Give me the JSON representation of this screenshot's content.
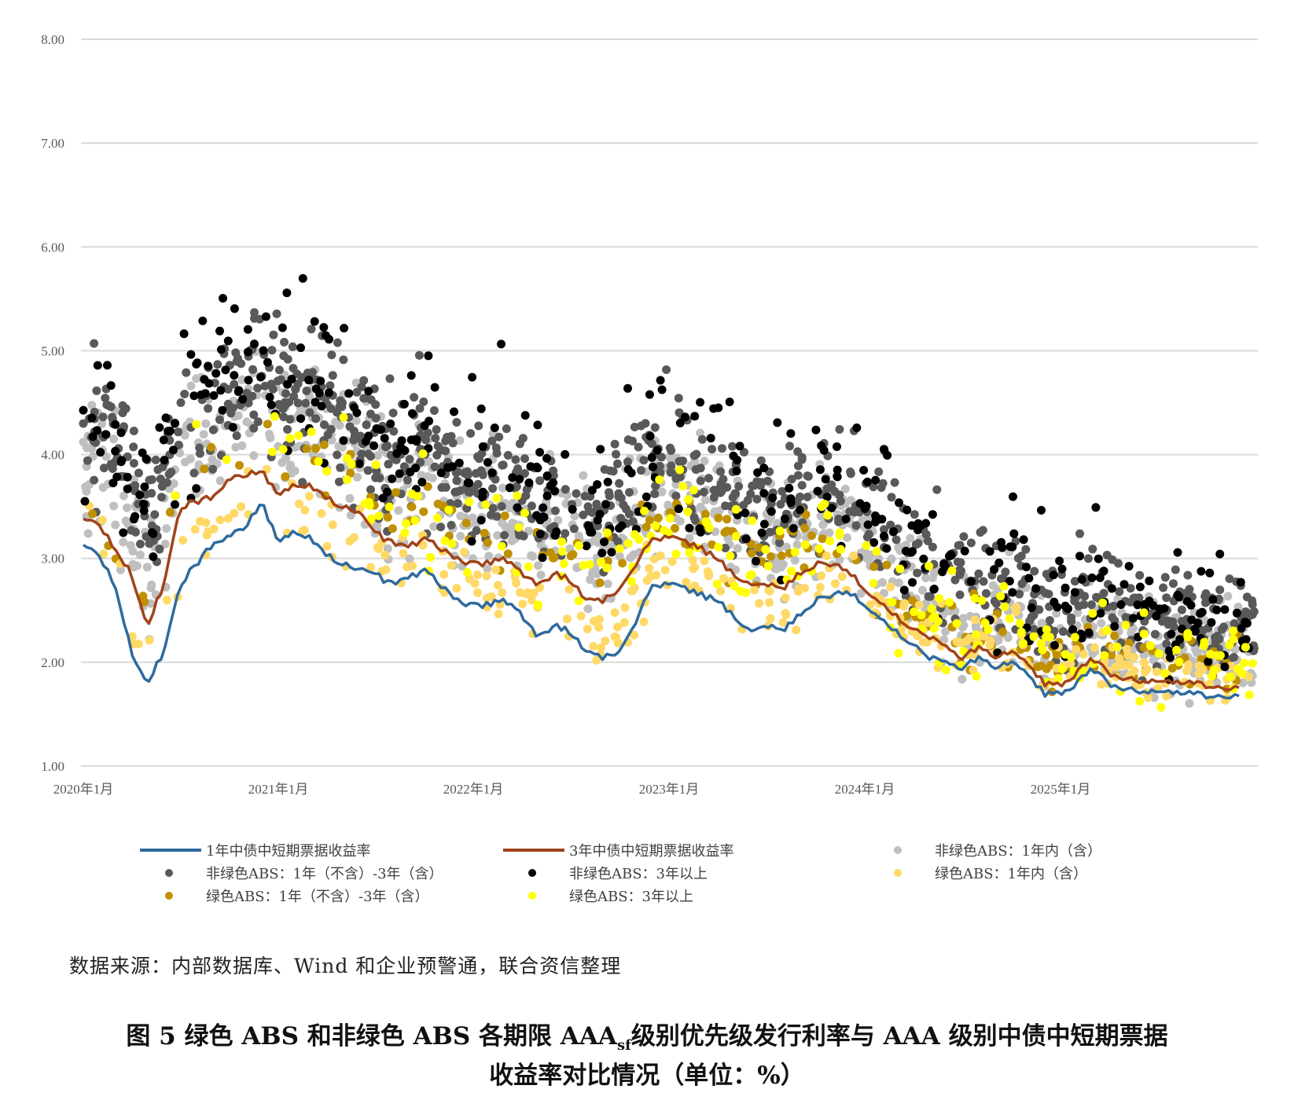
{
  "chart_data": {
    "type": "scatter",
    "ylim": [
      1.0,
      8.0
    ],
    "y_ticks": [
      "1.00",
      "2.00",
      "3.00",
      "4.00",
      "5.00",
      "6.00",
      "7.00",
      "8.00"
    ],
    "x_range": [
      "2020-01-01",
      "2025-12-31"
    ],
    "x_ticks": [
      {
        "date": "2020-01-01",
        "label": "2020年1月"
      },
      {
        "date": "2021-01-01",
        "label": "2021年1月"
      },
      {
        "date": "2022-01-01",
        "label": "2022年1月"
      },
      {
        "date": "2023-01-01",
        "label": "2023年1月"
      },
      {
        "date": "2024-01-01",
        "label": "2024年1月"
      },
      {
        "date": "2025-01-01",
        "label": "2025年1月"
      }
    ],
    "grid": true,
    "legend_position": "bottom",
    "lines": [
      {
        "name": "1年中债中短期票据收益率",
        "color": "#2E6A9E",
        "points": [
          [
            "2020-01-01",
            3.15
          ],
          [
            "2020-02-01",
            3.0
          ],
          [
            "2020-03-01",
            2.75
          ],
          [
            "2020-04-01",
            2.1
          ],
          [
            "2020-05-01",
            1.8
          ],
          [
            "2020-06-01",
            2.1
          ],
          [
            "2020-07-01",
            2.75
          ],
          [
            "2020-08-01",
            2.95
          ],
          [
            "2020-09-01",
            3.15
          ],
          [
            "2020-10-01",
            3.2
          ],
          [
            "2020-11-01",
            3.3
          ],
          [
            "2020-12-01",
            3.55
          ],
          [
            "2021-01-01",
            3.15
          ],
          [
            "2021-02-01",
            3.25
          ],
          [
            "2021-03-01",
            3.2
          ],
          [
            "2021-04-01",
            3.05
          ],
          [
            "2021-05-01",
            2.95
          ],
          [
            "2021-06-01",
            2.9
          ],
          [
            "2021-07-01",
            2.85
          ],
          [
            "2021-08-01",
            2.75
          ],
          [
            "2021-09-01",
            2.8
          ],
          [
            "2021-10-01",
            2.9
          ],
          [
            "2021-11-01",
            2.75
          ],
          [
            "2021-12-01",
            2.6
          ],
          [
            "2022-01-01",
            2.55
          ],
          [
            "2022-02-01",
            2.55
          ],
          [
            "2022-03-01",
            2.6
          ],
          [
            "2022-04-01",
            2.45
          ],
          [
            "2022-05-01",
            2.25
          ],
          [
            "2022-06-01",
            2.35
          ],
          [
            "2022-07-01",
            2.3
          ],
          [
            "2022-08-01",
            2.1
          ],
          [
            "2022-09-01",
            2.05
          ],
          [
            "2022-10-01",
            2.1
          ],
          [
            "2022-11-01",
            2.4
          ],
          [
            "2022-12-01",
            2.75
          ],
          [
            "2023-01-01",
            2.75
          ],
          [
            "2023-02-01",
            2.7
          ],
          [
            "2023-03-01",
            2.65
          ],
          [
            "2023-04-01",
            2.6
          ],
          [
            "2023-05-01",
            2.45
          ],
          [
            "2023-06-01",
            2.3
          ],
          [
            "2023-07-01",
            2.35
          ],
          [
            "2023-08-01",
            2.3
          ],
          [
            "2023-09-01",
            2.45
          ],
          [
            "2023-10-01",
            2.6
          ],
          [
            "2023-11-01",
            2.65
          ],
          [
            "2023-12-01",
            2.7
          ],
          [
            "2024-01-01",
            2.55
          ],
          [
            "2024-02-01",
            2.4
          ],
          [
            "2024-03-01",
            2.3
          ],
          [
            "2024-04-01",
            2.15
          ],
          [
            "2024-05-01",
            2.05
          ],
          [
            "2024-06-01",
            2.0
          ],
          [
            "2024-07-01",
            1.95
          ],
          [
            "2024-08-01",
            2.05
          ],
          [
            "2024-09-01",
            1.95
          ],
          [
            "2024-10-01",
            2.0
          ],
          [
            "2024-11-01",
            1.9
          ],
          [
            "2024-12-01",
            1.7
          ],
          [
            "2025-01-01",
            1.7
          ],
          [
            "2025-02-01",
            1.8
          ],
          [
            "2025-03-01",
            1.95
          ],
          [
            "2025-04-01",
            1.8
          ],
          [
            "2025-05-01",
            1.75
          ],
          [
            "2025-06-01",
            1.7
          ],
          [
            "2025-07-01",
            1.72
          ],
          [
            "2025-08-01",
            1.7
          ],
          [
            "2025-09-01",
            1.72
          ],
          [
            "2025-10-01",
            1.68
          ],
          [
            "2025-11-01",
            1.68
          ],
          [
            "2025-12-01",
            1.67
          ]
        ]
      },
      {
        "name": "3年中债中短期票据收益率",
        "color": "#A0431A",
        "points": [
          [
            "2020-01-01",
            3.4
          ],
          [
            "2020-02-01",
            3.3
          ],
          [
            "2020-03-01",
            3.1
          ],
          [
            "2020-04-01",
            2.85
          ],
          [
            "2020-05-01",
            2.35
          ],
          [
            "2020-06-01",
            2.75
          ],
          [
            "2020-07-01",
            3.5
          ],
          [
            "2020-08-01",
            3.55
          ],
          [
            "2020-09-01",
            3.6
          ],
          [
            "2020-10-01",
            3.75
          ],
          [
            "2020-11-01",
            3.8
          ],
          [
            "2020-12-01",
            3.85
          ],
          [
            "2021-01-01",
            3.6
          ],
          [
            "2021-02-01",
            3.7
          ],
          [
            "2021-03-01",
            3.7
          ],
          [
            "2021-04-01",
            3.6
          ],
          [
            "2021-05-01",
            3.5
          ],
          [
            "2021-06-01",
            3.45
          ],
          [
            "2021-07-01",
            3.25
          ],
          [
            "2021-08-01",
            3.15
          ],
          [
            "2021-09-01",
            3.1
          ],
          [
            "2021-10-01",
            3.2
          ],
          [
            "2021-11-01",
            3.1
          ],
          [
            "2021-12-01",
            3.0
          ],
          [
            "2022-01-01",
            2.95
          ],
          [
            "2022-02-01",
            2.95
          ],
          [
            "2022-03-01",
            3.0
          ],
          [
            "2022-04-01",
            2.85
          ],
          [
            "2022-05-01",
            2.75
          ],
          [
            "2022-06-01",
            2.85
          ],
          [
            "2022-07-01",
            2.8
          ],
          [
            "2022-08-01",
            2.6
          ],
          [
            "2022-09-01",
            2.6
          ],
          [
            "2022-10-01",
            2.7
          ],
          [
            "2022-11-01",
            2.95
          ],
          [
            "2022-12-01",
            3.2
          ],
          [
            "2023-01-01",
            3.2
          ],
          [
            "2023-02-01",
            3.15
          ],
          [
            "2023-03-01",
            3.1
          ],
          [
            "2023-04-01",
            3.0
          ],
          [
            "2023-05-01",
            2.85
          ],
          [
            "2023-06-01",
            2.75
          ],
          [
            "2023-07-01",
            2.75
          ],
          [
            "2023-08-01",
            2.7
          ],
          [
            "2023-09-01",
            2.85
          ],
          [
            "2023-10-01",
            2.95
          ],
          [
            "2023-11-01",
            2.95
          ],
          [
            "2023-12-01",
            2.9
          ],
          [
            "2024-01-01",
            2.7
          ],
          [
            "2024-02-01",
            2.55
          ],
          [
            "2024-03-01",
            2.45
          ],
          [
            "2024-04-01",
            2.3
          ],
          [
            "2024-05-01",
            2.25
          ],
          [
            "2024-06-01",
            2.15
          ],
          [
            "2024-07-01",
            2.05
          ],
          [
            "2024-08-01",
            2.15
          ],
          [
            "2024-09-01",
            2.05
          ],
          [
            "2024-10-01",
            2.1
          ],
          [
            "2024-11-01",
            2.0
          ],
          [
            "2024-12-01",
            1.8
          ],
          [
            "2025-01-01",
            1.78
          ],
          [
            "2025-02-01",
            1.9
          ],
          [
            "2025-03-01",
            2.05
          ],
          [
            "2025-04-01",
            1.9
          ],
          [
            "2025-05-01",
            1.85
          ],
          [
            "2025-06-01",
            1.8
          ],
          [
            "2025-07-01",
            1.82
          ],
          [
            "2025-08-01",
            1.8
          ],
          [
            "2025-09-01",
            1.82
          ],
          [
            "2025-10-01",
            1.78
          ],
          [
            "2025-11-01",
            1.76
          ],
          [
            "2025-12-01",
            1.75
          ]
        ]
      }
    ],
    "series": [
      {
        "name": "非绿色ABS：1年内（含）",
        "color": "#BFBFBF",
        "count": 900
      },
      {
        "name": "非绿色ABS：1年（不含）-3年（含）",
        "color": "#595959",
        "count": 900
      },
      {
        "name": "非绿色ABS：3年以上",
        "color": "#000000",
        "count": 420
      },
      {
        "name": "绿色ABS：1年内（含）",
        "color": "#FFD966",
        "count": 300
      },
      {
        "name": "绿色ABS：1年（不含）-3年（含）",
        "color": "#BF9000",
        "count": 180
      },
      {
        "name": "绿色ABS：3年以上",
        "color": "#FFFF00",
        "count": 200
      }
    ],
    "title": "图 5  绿色 ABS 和非绿色 ABS 各期限 AAAsf 级别优先级发行利率与 AAA 级别中债中短期票据收益率对比情况（单位：%）"
  },
  "legend": {
    "line1": "1年中债中短期票据收益率",
    "line3": "3年中债中短期票据收益率",
    "ng_short": "非绿色ABS：1年内（含）",
    "ng_mid": "非绿色ABS：1年（不含）-3年（含）",
    "ng_long": "非绿色ABS：3年以上",
    "g_short": "绿色ABS：1年内（含）",
    "g_mid": "绿色ABS：1年（不含）-3年（含）",
    "g_long": "绿色ABS：3年以上"
  },
  "source_note": "数据来源：内部数据库、Wind 和企业预警通，联合资信整理",
  "caption": {
    "line1_prefix": "图 5  绿色 ABS 和非绿色 ABS 各期限 AAA",
    "line1_sub": "sf",
    "line1_suffix": "级别优先级发行利率与 AAA 级别中债中短期票据",
    "line2": "收益率对比情况（单位：%）"
  }
}
